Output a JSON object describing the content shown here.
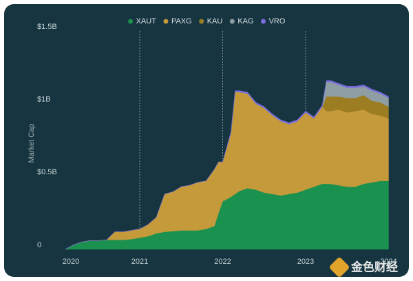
{
  "chart_data": {
    "type": "stacked_area",
    "y_label": "Market Cap",
    "watermark": "金色财经",
    "x": [
      2020.1,
      2020.2,
      2020.3,
      2020.4,
      2020.5,
      2020.6,
      2020.7,
      2020.8,
      2020.9,
      2021.0,
      2021.1,
      2021.2,
      2021.3,
      2021.4,
      2021.5,
      2021.6,
      2021.7,
      2021.8,
      2021.9,
      2021.95,
      2022.0,
      2022.1,
      2022.15,
      2022.2,
      2022.3,
      2022.4,
      2022.5,
      2022.6,
      2022.7,
      2022.8,
      2022.9,
      2023.0,
      2023.1,
      2023.2,
      2023.25,
      2023.3,
      2023.4,
      2023.5,
      2023.6,
      2023.7,
      2023.8,
      2023.9,
      2024.0
    ],
    "series": [
      {
        "name": "XAUT",
        "color": "#1b914f",
        "values": [
          0,
          0.03,
          0.05,
          0.06,
          0.06,
          0.065,
          0.065,
          0.065,
          0.07,
          0.08,
          0.09,
          0.11,
          0.12,
          0.125,
          0.13,
          0.13,
          0.13,
          0.14,
          0.16,
          0.25,
          0.33,
          0.36,
          0.38,
          0.4,
          0.42,
          0.41,
          0.39,
          0.38,
          0.37,
          0.38,
          0.39,
          0.41,
          0.43,
          0.45,
          0.45,
          0.45,
          0.44,
          0.43,
          0.43,
          0.45,
          0.46,
          0.47,
          0.47
        ]
      },
      {
        "name": "PAXG",
        "color": "#c49a3a",
        "values": [
          0,
          0,
          0,
          0,
          0,
          0,
          0.055,
          0.055,
          0.06,
          0.06,
          0.08,
          0.11,
          0.26,
          0.27,
          0.3,
          0.31,
          0.33,
          0.33,
          0.39,
          0.35,
          0.27,
          0.44,
          0.7,
          0.68,
          0.65,
          0.59,
          0.58,
          0.54,
          0.51,
          0.48,
          0.49,
          0.53,
          0.47,
          0.53,
          0.5,
          0.5,
          0.52,
          0.51,
          0.52,
          0.51,
          0.47,
          0.45,
          0.43
        ]
      },
      {
        "name": "KAU",
        "color": "#9c7d22",
        "values": [
          0,
          0,
          0,
          0,
          0,
          0,
          0,
          0,
          0,
          0,
          0,
          0,
          0,
          0,
          0,
          0,
          0,
          0,
          0,
          0,
          0,
          0,
          0,
          0,
          0,
          0,
          0,
          0,
          0,
          0,
          0,
          0,
          0,
          0,
          0.1,
          0.1,
          0.09,
          0.1,
          0.09,
          0.1,
          0.09,
          0.09,
          0.08
        ]
      },
      {
        "name": "KAG",
        "color": "#8e9ea3",
        "values": [
          0,
          0,
          0,
          0,
          0,
          0,
          0,
          0,
          0,
          0,
          0,
          0,
          0,
          0,
          0,
          0,
          0,
          0,
          0,
          0,
          0,
          0,
          0,
          0,
          0,
          0,
          0,
          0,
          0,
          0,
          0,
          0,
          0,
          0,
          0.1,
          0.1,
          0.08,
          0.07,
          0.07,
          0.06,
          0.07,
          0.06,
          0.06
        ]
      },
      {
        "name": "VRO",
        "color": "#7b6ee0",
        "values": [
          0,
          0,
          0,
          0,
          0,
          0,
          0,
          0,
          0,
          0,
          0,
          0,
          0,
          0,
          0,
          0,
          0,
          0,
          0,
          0,
          0,
          0.01,
          0.01,
          0.01,
          0.01,
          0.01,
          0.01,
          0.01,
          0.01,
          0.01,
          0.01,
          0.01,
          0.01,
          0.01,
          0.01,
          0.01,
          0.01,
          0.01,
          0.01,
          0.01,
          0.01,
          0.01,
          0.01
        ]
      }
    ],
    "xlim": [
      2019.9,
      2024.05
    ],
    "xticks": [
      2020,
      2021,
      2022,
      2023,
      2024
    ],
    "ylim": [
      0,
      1.5
    ],
    "yticks": [
      0,
      {
        "value": 0.5,
        "label": "$0.5B"
      },
      {
        "value": 1,
        "label": "$1B"
      },
      {
        "value": 1.5,
        "label": "$1.5B"
      }
    ],
    "grid": true
  }
}
